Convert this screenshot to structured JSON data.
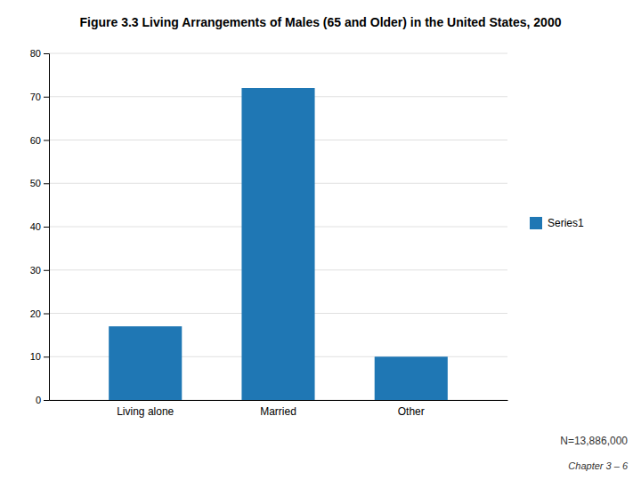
{
  "chart_data": {
    "type": "bar",
    "title": "Figure 3.3 Living Arrangements of Males (65 and Older) in the United States, 2000",
    "categories": [
      "Living alone",
      "Married",
      "Other"
    ],
    "series": [
      {
        "name": "Series1",
        "values": [
          17,
          72,
          10
        ]
      }
    ],
    "ylim": [
      0,
      80
    ],
    "yticks": [
      0,
      10,
      20,
      30,
      40,
      50,
      60,
      70,
      80
    ],
    "grid": true,
    "legend": "right",
    "annotations": [
      "N=13,886,000",
      "Chapter 3 – 6"
    ]
  }
}
